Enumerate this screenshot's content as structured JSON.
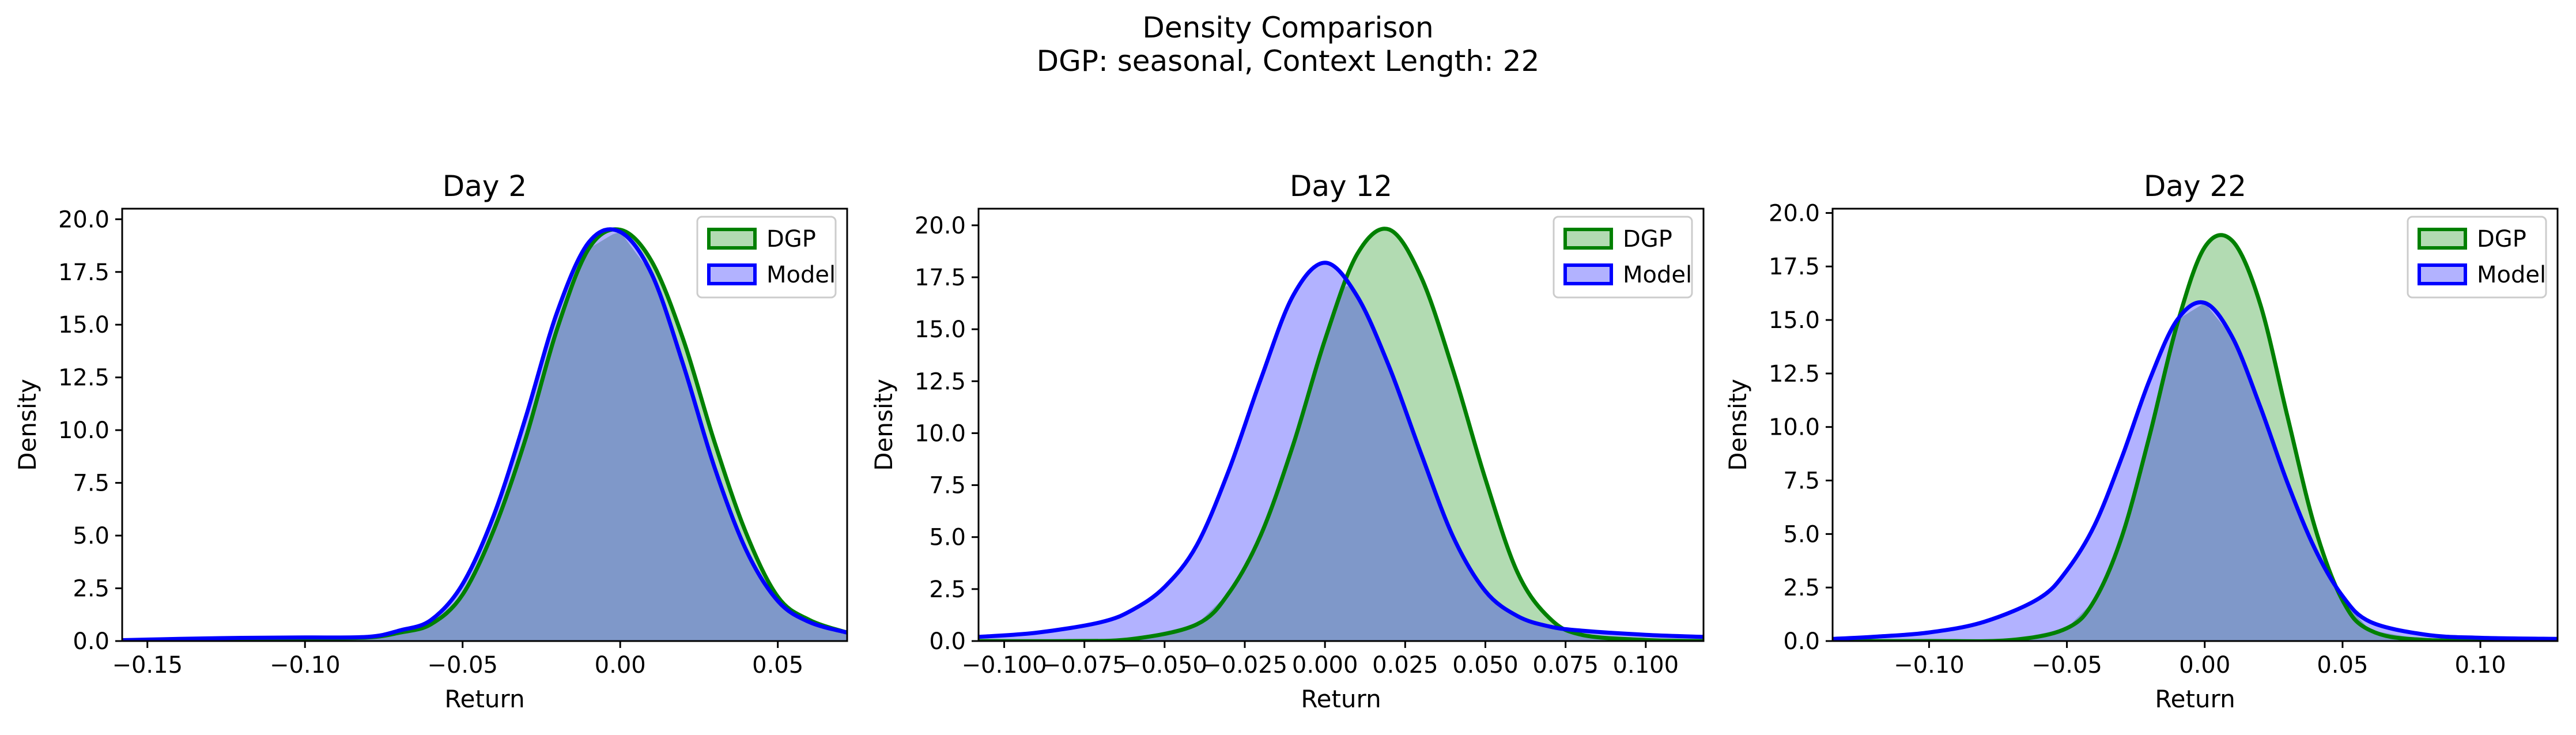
{
  "figure": {
    "title_line1": "Density Comparison",
    "title_line2": "DGP: seasonal, Context Length: 22"
  },
  "colors": {
    "dgp_line": "#008000",
    "dgp_fill": "#b2dbb2",
    "model_line": "#0000ff",
    "model_fill": "#b2b2ff",
    "overlap_fill": "#7f98c9"
  },
  "chart_data": [
    {
      "type": "area",
      "title": "Day 2",
      "xlabel": "Return",
      "ylabel": "Density",
      "xlim": [
        -0.158,
        0.072
      ],
      "ylim": [
        0,
        20.5
      ],
      "xticks": [
        -0.15,
        -0.1,
        -0.05,
        0.0,
        0.05
      ],
      "xtick_labels": [
        "−0.15",
        "−0.10",
        "−0.05",
        "0.00",
        "0.05"
      ],
      "yticks": [
        0,
        2.5,
        5,
        7.5,
        10,
        12.5,
        15,
        17.5,
        20
      ],
      "ytick_labels": [
        "0.0",
        "2.5",
        "5.0",
        "7.5",
        "10.0",
        "12.5",
        "15.0",
        "17.5",
        "20.0"
      ],
      "legend": "top-right",
      "series": [
        {
          "name": "DGP",
          "x": [
            -0.158,
            -0.14,
            -0.12,
            -0.1,
            -0.08,
            -0.07,
            -0.06,
            -0.05,
            -0.04,
            -0.03,
            -0.02,
            -0.01,
            0,
            0.01,
            0.02,
            0.03,
            0.04,
            0.05,
            0.06,
            0.072
          ],
          "y": [
            0.03,
            0.06,
            0.1,
            0.13,
            0.17,
            0.4,
            0.8,
            2.2,
            5.3,
            9.6,
            14.8,
            18.6,
            19.5,
            18.0,
            14.3,
            9.4,
            5.1,
            2.1,
            1.0,
            0.4
          ]
        },
        {
          "name": "Model",
          "x": [
            -0.158,
            -0.14,
            -0.12,
            -0.1,
            -0.08,
            -0.07,
            -0.06,
            -0.05,
            -0.04,
            -0.03,
            -0.02,
            -0.01,
            0,
            0.01,
            0.02,
            0.03,
            0.04,
            0.05,
            0.06,
            0.072
          ],
          "y": [
            0.04,
            0.1,
            0.15,
            0.17,
            0.2,
            0.5,
            1.0,
            2.7,
            6.0,
            10.6,
            15.6,
            18.9,
            19.4,
            17.4,
            13.1,
            8.2,
            4.3,
            1.9,
            0.9,
            0.4
          ]
        }
      ]
    },
    {
      "type": "area",
      "title": "Day 12",
      "xlabel": "Return",
      "ylabel": "Density",
      "xlim": [
        -0.108,
        0.118
      ],
      "ylim": [
        0,
        20.8
      ],
      "xticks": [
        -0.1,
        -0.075,
        -0.05,
        -0.025,
        0,
        0.025,
        0.05,
        0.075,
        0.1
      ],
      "xtick_labels": [
        "−0.100",
        "−0.075",
        "−0.050",
        "−0.025",
        "0.000",
        "0.025",
        "0.050",
        "0.075",
        "0.100"
      ],
      "yticks": [
        0,
        2.5,
        5,
        7.5,
        10,
        12.5,
        15,
        17.5,
        20
      ],
      "ytick_labels": [
        "0.0",
        "2.5",
        "5.0",
        "7.5",
        "10.0",
        "12.5",
        "15.0",
        "17.5",
        "20.0"
      ],
      "legend": "top-right",
      "series": [
        {
          "name": "DGP",
          "x": [
            -0.108,
            -0.08,
            -0.06,
            -0.04,
            -0.03,
            -0.02,
            -0.01,
            0,
            0.01,
            0.02,
            0.03,
            0.04,
            0.05,
            0.06,
            0.07,
            0.08,
            0.1,
            0.118
          ],
          "y": [
            0,
            0,
            0.1,
            0.8,
            2.3,
            5.1,
            9.4,
            14.5,
            18.6,
            19.8,
            17.5,
            13.0,
            7.8,
            3.3,
            1.1,
            0.3,
            0.05,
            0
          ]
        },
        {
          "name": "Model",
          "x": [
            -0.108,
            -0.09,
            -0.07,
            -0.06,
            -0.05,
            -0.04,
            -0.03,
            -0.02,
            -0.01,
            0,
            0.01,
            0.02,
            0.03,
            0.04,
            0.05,
            0.06,
            0.07,
            0.08,
            0.1,
            0.118
          ],
          "y": [
            0.2,
            0.4,
            0.9,
            1.5,
            2.6,
            4.6,
            8.2,
            12.6,
            16.6,
            18.2,
            16.6,
            13.2,
            9.0,
            5.0,
            2.4,
            1.2,
            0.7,
            0.5,
            0.3,
            0.2
          ]
        }
      ]
    },
    {
      "type": "area",
      "title": "Day 22",
      "xlabel": "Return",
      "ylabel": "Density",
      "xlim": [
        -0.135,
        0.128
      ],
      "ylim": [
        0,
        20.2
      ],
      "xticks": [
        -0.1,
        -0.05,
        0,
        0.05,
        0.1
      ],
      "xtick_labels": [
        "−0.10",
        "−0.05",
        "0.00",
        "0.05",
        "0.10"
      ],
      "yticks": [
        0,
        2.5,
        5,
        7.5,
        10,
        12.5,
        15,
        17.5,
        20
      ],
      "ytick_labels": [
        "0.0",
        "2.5",
        "5.0",
        "7.5",
        "10.0",
        "12.5",
        "15.0",
        "17.5",
        "20.0"
      ],
      "legend": "top-right",
      "series": [
        {
          "name": "DGP",
          "x": [
            -0.135,
            -0.1,
            -0.07,
            -0.05,
            -0.04,
            -0.03,
            -0.02,
            -0.01,
            0,
            0.01,
            0.02,
            0.03,
            0.04,
            0.05,
            0.06,
            0.08,
            0.128
          ],
          "y": [
            0,
            0,
            0.05,
            0.6,
            1.9,
            4.9,
            9.6,
            14.8,
            18.4,
            18.7,
            15.8,
            10.5,
            5.3,
            1.9,
            0.5,
            0.05,
            0
          ]
        },
        {
          "name": "Model",
          "x": [
            -0.135,
            -0.12,
            -0.1,
            -0.08,
            -0.06,
            -0.05,
            -0.04,
            -0.03,
            -0.02,
            -0.01,
            0,
            0.01,
            0.02,
            0.03,
            0.04,
            0.05,
            0.06,
            0.08,
            0.1,
            0.128
          ],
          "y": [
            0.1,
            0.2,
            0.4,
            0.9,
            2.0,
            3.3,
            5.4,
            8.6,
            12.2,
            15.0,
            15.8,
            14.2,
            11.0,
            7.4,
            4.3,
            2.1,
            0.9,
            0.3,
            0.15,
            0.1
          ]
        }
      ]
    }
  ]
}
